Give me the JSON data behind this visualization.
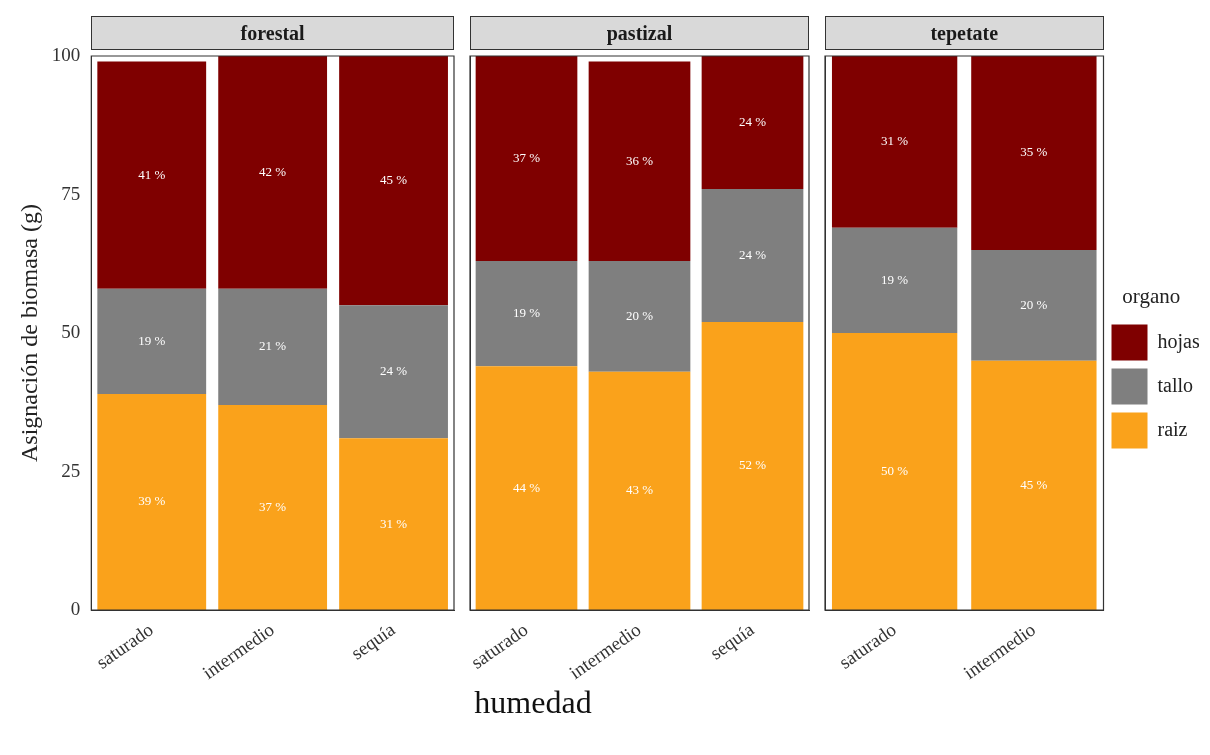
{
  "chart_data": [
    {
      "type": "bar",
      "title": "forestal",
      "ylabel": "Asignación de biomasa (g)",
      "stacked": true,
      "categories": [
        "saturado",
        "intermedio",
        "sequía"
      ],
      "ylim": [
        0,
        100
      ],
      "yticks": [
        0,
        25,
        50,
        75,
        100
      ],
      "series": [
        {
          "color": "#faa21b",
          "values": [
            39,
            37,
            31
          ],
          "value_labels": [
            "39 %",
            "37 %",
            "31 %"
          ]
        },
        {
          "color": "#7f7f7f",
          "values": [
            19,
            21,
            24
          ],
          "value_labels": [
            "19 %",
            "21 %",
            "24 %"
          ]
        },
        {
          "color": "#7f0000",
          "values": [
            41,
            42,
            45
          ],
          "value_labels": [
            "41 %",
            "42 %",
            "45 %"
          ]
        }
      ]
    },
    {
      "type": "bar",
      "title": "pastizal",
      "xlabel": "humedad",
      "stacked": true,
      "tick_labels": "x",
      "categories": [
        "saturado",
        "intermedio",
        "sequía"
      ],
      "ylim": [
        0,
        100
      ],
      "yticks": [
        0,
        25,
        50,
        75,
        100
      ],
      "series": [
        {
          "color": "#faa21b",
          "values": [
            44,
            43,
            52
          ],
          "value_labels": [
            "44 %",
            "43 %",
            "52 %"
          ]
        },
        {
          "color": "#7f7f7f",
          "values": [
            19,
            20,
            24
          ],
          "value_labels": [
            "19 %",
            "20 %",
            "24 %"
          ]
        },
        {
          "color": "#7f0000",
          "values": [
            37,
            36,
            24
          ],
          "value_labels": [
            "37 %",
            "36 %",
            "24 %"
          ]
        }
      ]
    },
    {
      "type": "bar",
      "title": "tepetate",
      "stacked": true,
      "tick_labels": "x",
      "legend": "right",
      "legend_title": "organo",
      "categories": [
        "saturado",
        "intermedio"
      ],
      "ylim": [
        0,
        100
      ],
      "yticks": [
        0,
        25,
        50,
        75,
        100
      ],
      "series": [
        {
          "name": "raiz",
          "color": "#faa21b",
          "values": [
            50,
            45
          ],
          "value_labels": [
            "50 %",
            "45 %"
          ]
        },
        {
          "name": "tallo",
          "color": "#7f7f7f",
          "values": [
            19,
            20
          ],
          "value_labels": [
            "19 %",
            "20 %"
          ]
        },
        {
          "name": "hojas",
          "color": "#7f0000",
          "values": [
            31,
            35
          ],
          "value_labels": [
            "31 %",
            "35 %"
          ]
        }
      ]
    }
  ]
}
